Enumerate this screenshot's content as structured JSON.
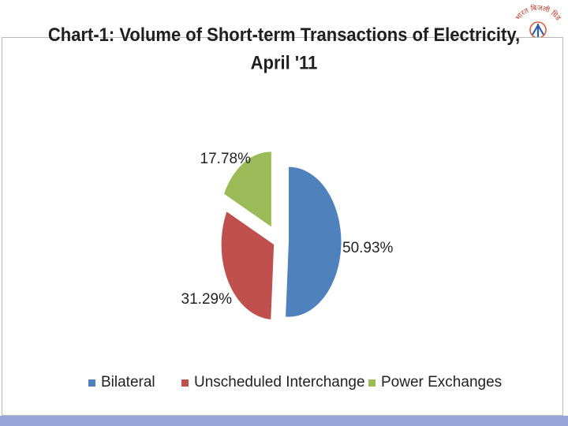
{
  "colors": {
    "bilateral": "#4f81bd",
    "unscheduled": "#c0504d",
    "power_exchanges": "#9bbb59",
    "bottom_bar": "#96a6d8"
  },
  "logo": {
    "text": "भारत बिजली ग्रिड"
  },
  "chart_data": {
    "type": "pie",
    "title": [
      "Chart-1: Volume of Short-term Transactions of Electricity,",
      "April '11"
    ],
    "categories": [
      "Bilateral",
      "Unscheduled Interchange",
      "Power Exchanges"
    ],
    "values": [
      50.93,
      31.29,
      17.78
    ],
    "data_labels": [
      "50.93%",
      "31.29%",
      "17.78%"
    ],
    "exploded": true,
    "legend_position": "bottom"
  }
}
